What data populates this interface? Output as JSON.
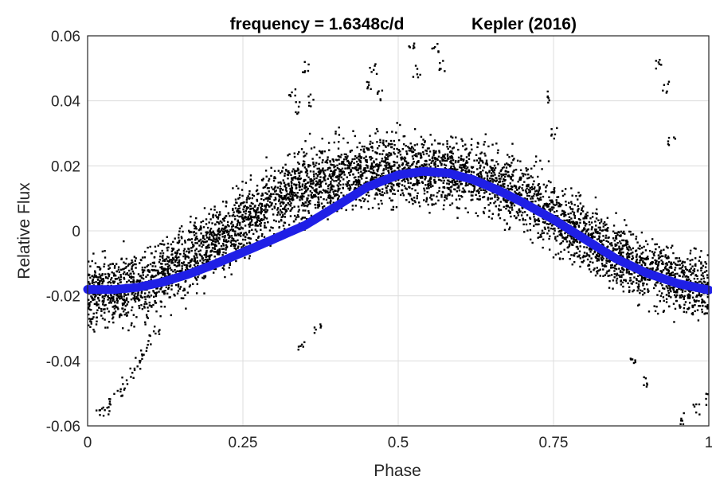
{
  "chart_data": {
    "type": "scatter",
    "title_left": "frequency = 1.6348c/d",
    "title_right": "Kepler (2016)",
    "xlabel": "Phase",
    "ylabel": "Relative Flux",
    "xlim": [
      0,
      1
    ],
    "ylim": [
      -0.06,
      0.06
    ],
    "xticks": [
      0,
      0.25,
      0.5,
      0.75,
      1
    ],
    "xtick_labels": [
      "0",
      "0.25",
      "0.5",
      "0.75",
      "1"
    ],
    "yticks": [
      -0.06,
      -0.04,
      -0.02,
      0,
      0.02,
      0.04,
      0.06
    ],
    "ytick_labels": [
      "-0.06",
      "-0.04",
      "-0.02",
      "0",
      "0.02",
      "0.04",
      "0.06"
    ],
    "grid": true,
    "series": [
      {
        "kind": "points",
        "color": "#000000",
        "x": [
          0.0,
          0.02,
          0.04,
          0.06,
          0.08,
          0.1,
          0.12,
          0.14,
          0.16,
          0.18,
          0.2,
          0.22,
          0.24,
          0.26,
          0.28,
          0.3,
          0.32,
          0.34,
          0.36,
          0.38,
          0.4,
          0.42,
          0.44,
          0.46,
          0.48,
          0.5,
          0.52,
          0.54,
          0.56,
          0.58,
          0.6,
          0.62,
          0.64,
          0.66,
          0.68,
          0.7,
          0.72,
          0.74,
          0.76,
          0.78,
          0.8,
          0.82,
          0.84,
          0.86,
          0.88,
          0.9,
          0.92,
          0.94,
          0.96,
          0.98,
          1.0
        ],
        "y": [
          -0.0185,
          -0.019,
          -0.0188,
          -0.0182,
          -0.0172,
          -0.0158,
          -0.014,
          -0.0119,
          -0.0095,
          -0.0069,
          -0.0042,
          -0.0014,
          0.0013,
          0.004,
          0.0066,
          0.009,
          0.0112,
          0.0131,
          0.0147,
          0.016,
          0.017,
          0.0177,
          0.0182,
          0.0185,
          0.0186,
          0.0187,
          0.0187,
          0.0186,
          0.0184,
          0.0181,
          0.0176,
          0.0168,
          0.0157,
          0.0143,
          0.0126,
          0.0106,
          0.0084,
          0.006,
          0.0035,
          0.001,
          -0.0015,
          -0.0039,
          -0.0061,
          -0.0082,
          -0.0101,
          -0.0118,
          -0.0133,
          -0.0146,
          -0.016,
          -0.0174,
          -0.0185
        ],
        "scatter": 0.0095
      },
      {
        "kind": "line",
        "color": "#1f1fe6",
        "x": [
          0.0,
          0.04,
          0.08,
          0.12,
          0.16,
          0.2,
          0.25,
          0.3,
          0.35,
          0.4,
          0.45,
          0.5,
          0.54,
          0.58,
          0.62,
          0.66,
          0.7,
          0.75,
          0.8,
          0.85,
          0.9,
          0.95,
          1.0
        ],
        "y": [
          -0.018,
          -0.0181,
          -0.0174,
          -0.0158,
          -0.0135,
          -0.0106,
          -0.0066,
          -0.0025,
          0.0017,
          0.0075,
          0.0135,
          0.0172,
          0.0183,
          0.0178,
          0.0158,
          0.0126,
          0.0088,
          0.0035,
          -0.0025,
          -0.0085,
          -0.013,
          -0.0162,
          -0.0182
        ]
      },
      {
        "kind": "outliers",
        "color": "#000000",
        "x": [
          0.02,
          0.03,
          0.04,
          0.05,
          0.06,
          0.07,
          0.08,
          0.09,
          0.1,
          0.11,
          0.33,
          0.34,
          0.345,
          0.35,
          0.36,
          0.37,
          0.45,
          0.46,
          0.47,
          0.52,
          0.53,
          0.56,
          0.57,
          0.74,
          0.75,
          0.88,
          0.9,
          0.92,
          0.93,
          0.94,
          0.96,
          0.98,
          1.0
        ],
        "y": [
          -0.056,
          -0.055,
          -0.052,
          -0.05,
          -0.047,
          -0.044,
          -0.041,
          -0.038,
          -0.034,
          -0.03,
          0.043,
          0.038,
          -0.035,
          0.05,
          0.04,
          -0.03,
          0.045,
          0.05,
          0.042,
          0.058,
          0.049,
          0.056,
          0.051,
          0.041,
          0.03,
          -0.04,
          -0.046,
          0.051,
          0.044,
          0.027,
          -0.058,
          -0.055,
          -0.052
        ]
      }
    ]
  }
}
